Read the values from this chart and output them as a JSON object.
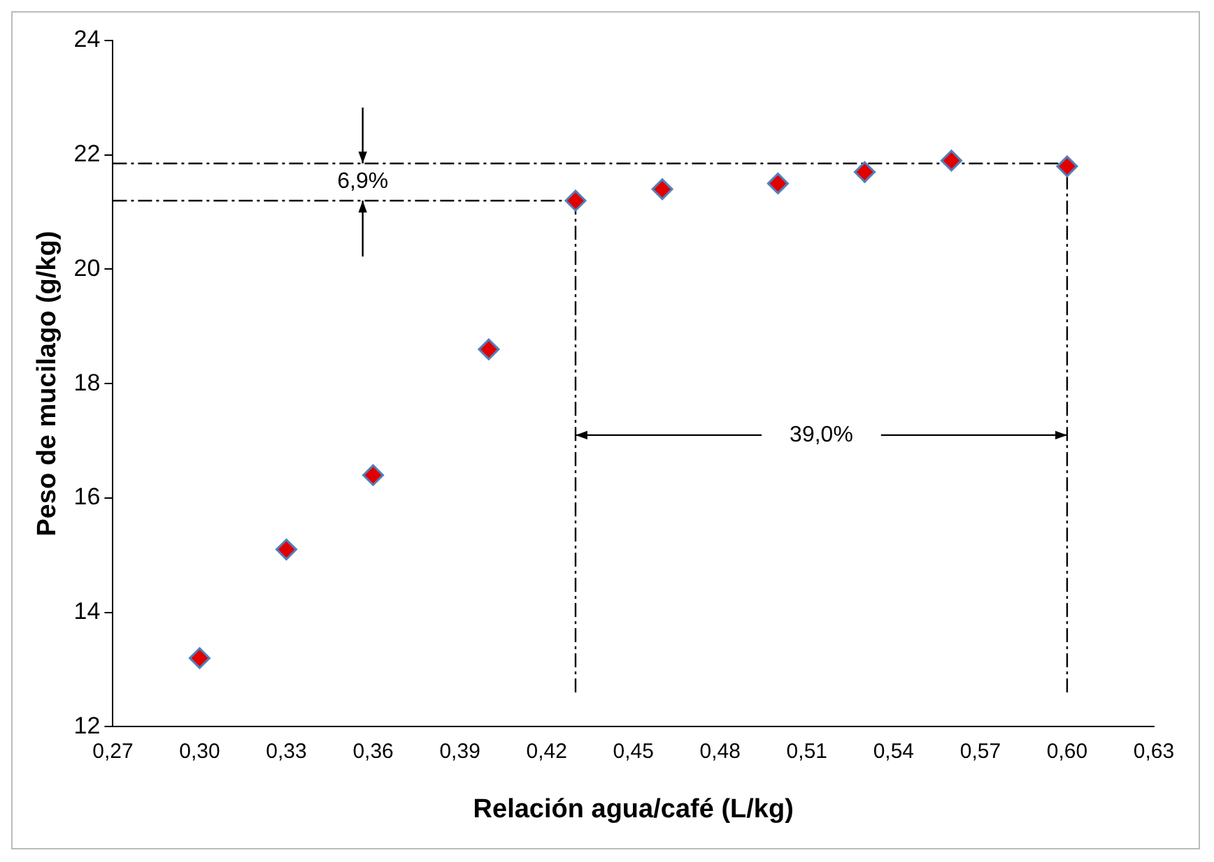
{
  "chart_data": {
    "type": "scatter",
    "xlabel": "Relación agua/café (L/kg)",
    "ylabel": "Peso de mucilago (g/kg)",
    "x": [
      0.3,
      0.33,
      0.36,
      0.4,
      0.43,
      0.46,
      0.5,
      0.53,
      0.56,
      0.6
    ],
    "series": [
      {
        "type": "scatter",
        "color": "#e00000",
        "values": [
          13.2,
          15.1,
          16.4,
          18.6,
          21.2,
          21.4,
          21.5,
          21.7,
          21.9,
          21.8
        ],
        "marker": "diamond"
      },
      {
        "type": "line",
        "color": "#000000",
        "x": [
          0.27,
          0.6
        ],
        "values": [
          21.85,
          21.85
        ],
        "line_style": "dashed",
        "marker": "none"
      },
      {
        "type": "line",
        "color": "#000000",
        "x": [
          0.27,
          0.43
        ],
        "values": [
          21.2,
          21.2
        ],
        "line_style": "dashed",
        "marker": "none"
      },
      {
        "type": "line",
        "color": "#000000",
        "x": [
          0.43,
          0.43
        ],
        "values": [
          12.6,
          21.2
        ],
        "line_style": "dashed",
        "marker": "none"
      },
      {
        "type": "line",
        "color": "#000000",
        "x": [
          0.6,
          0.6
        ],
        "values": [
          12.6,
          21.85
        ],
        "line_style": "dashed",
        "marker": "none"
      }
    ],
    "annotations": [
      "6,9%",
      {
        "text": "39,0%",
        "x": 0.6,
        "y": 17.1
      }
    ],
    "xlim": [
      0.27,
      0.63
    ],
    "xticks": [
      {
        "value": 0.27,
        "label": "0,27"
      },
      {
        "value": 0.3,
        "label": "0,30"
      },
      {
        "value": 0.33,
        "label": "0,33"
      },
      {
        "value": 0.36,
        "label": "0,36"
      },
      {
        "value": 0.39,
        "label": "0,39"
      },
      {
        "value": 0.42,
        "label": "0,42"
      },
      {
        "value": 0.45,
        "label": "0,45"
      },
      {
        "value": 0.48,
        "label": "0,48"
      },
      {
        "value": 0.51,
        "label": "0,51"
      },
      {
        "value": 0.54,
        "label": "0,54"
      },
      {
        "value": 0.57,
        "label": "0,57"
      },
      {
        "value": 0.6,
        "label": "0,60"
      },
      {
        "value": 0.63,
        "label": "0,63"
      }
    ],
    "ylim": [
      12,
      24
    ],
    "yticks": [
      12,
      14,
      16,
      18,
      20,
      22,
      24
    ],
    "grid": false,
    "legend": false
  }
}
